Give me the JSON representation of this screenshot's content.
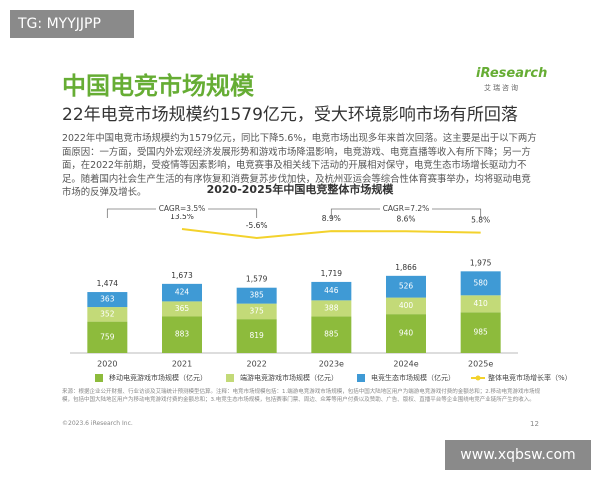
{
  "watermark": "TG: MYYJJPP",
  "header": {
    "title": "中国电竞市场规模",
    "logo": "iResearch",
    "logo_sub": "艾瑞咨询",
    "subtitle": "22年电竞市场规模约1579亿元，受大环境影响市场有所回落",
    "paragraph": "2022年中国电竞市场规模约为1579亿元，同比下降5.6%，电竞市场出现多年来首次回落。这主要是出于以下两方面原因：一方面，受国内外宏观经济发展形势和游戏市场降温影响，电竞游戏、电竞直播等收入有所下降；另一方面，在2022年前期，受疫情等因素影响，电竞赛事及相关线下活动的开展相对保守，电竞生态市场增长驱动力不足。随着国内社会生产生活的有序恢复和消费复苏步伐加快，及杭州亚运会等综合性体育赛事举办，均将驱动电竞市场的反弹及增长。"
  },
  "chart_data": {
    "type": "bar",
    "stacked": true,
    "title": "2020-2025年中国电竞整体市场规模",
    "categories": [
      "2020",
      "2021",
      "2022",
      "2023e",
      "2024e",
      "2025e"
    ],
    "series": [
      {
        "name": "移动电竞游戏市场规模（亿元）",
        "color": "#8dbb3c",
        "values": [
          759,
          883,
          819,
          885,
          940,
          985
        ]
      },
      {
        "name": "端游电竞游戏市场规模（亿元）",
        "color": "#c3da78",
        "values": [
          352,
          365,
          375,
          388,
          400,
          410
        ]
      },
      {
        "name": "电竞生态市场规模（亿元）",
        "color": "#3f9ad5",
        "values": [
          363,
          424,
          385,
          446,
          526,
          580
        ]
      },
      {
        "name": "整体电竞市场增长率（%）",
        "type": "line",
        "axis": "y2",
        "color": "#f3d22c",
        "values": [
          null,
          13.5,
          -5.6,
          8.9,
          8.6,
          5.8
        ],
        "value_labels": [
          null,
          "13.5%",
          "-5.6%",
          "8.9%",
          "8.6%",
          "5.8%"
        ]
      }
    ],
    "totals": [
      1474,
      1673,
      1579,
      1719,
      1866,
      1975
    ],
    "total_labels": [
      "1,474",
      "1,673",
      "1,579",
      "1,719",
      "1,866",
      "1,975"
    ],
    "annotations": [
      "CAGR=3.5%",
      "CAGR=7.2%"
    ],
    "ylim": [
      0,
      3700
    ],
    "y2lim": [
      -250,
      75
    ]
  },
  "footer": {
    "notes": "来源：根据企业公开财报、行业访谈及艾瑞统计预测模型估算。注释：电竞市场规模包括：1.端游电竞游戏市场规模，包括中国大陆地区用户为端游电竞游戏付费的金额总和；2.移动电竞游戏市场规模，包括中国大陆地区用户为移动电竞游戏付费的金额总和；3.电竞生态市场规模，包括赛事门票、周边、众筹等用户付费以及赞助、广告、版权、直播平台等企业围绕电竞产业链所产生的收入。",
    "copyright": "©2023.6 iResearch Inc.",
    "page": "12",
    "site": "www.xqbsw.com"
  }
}
